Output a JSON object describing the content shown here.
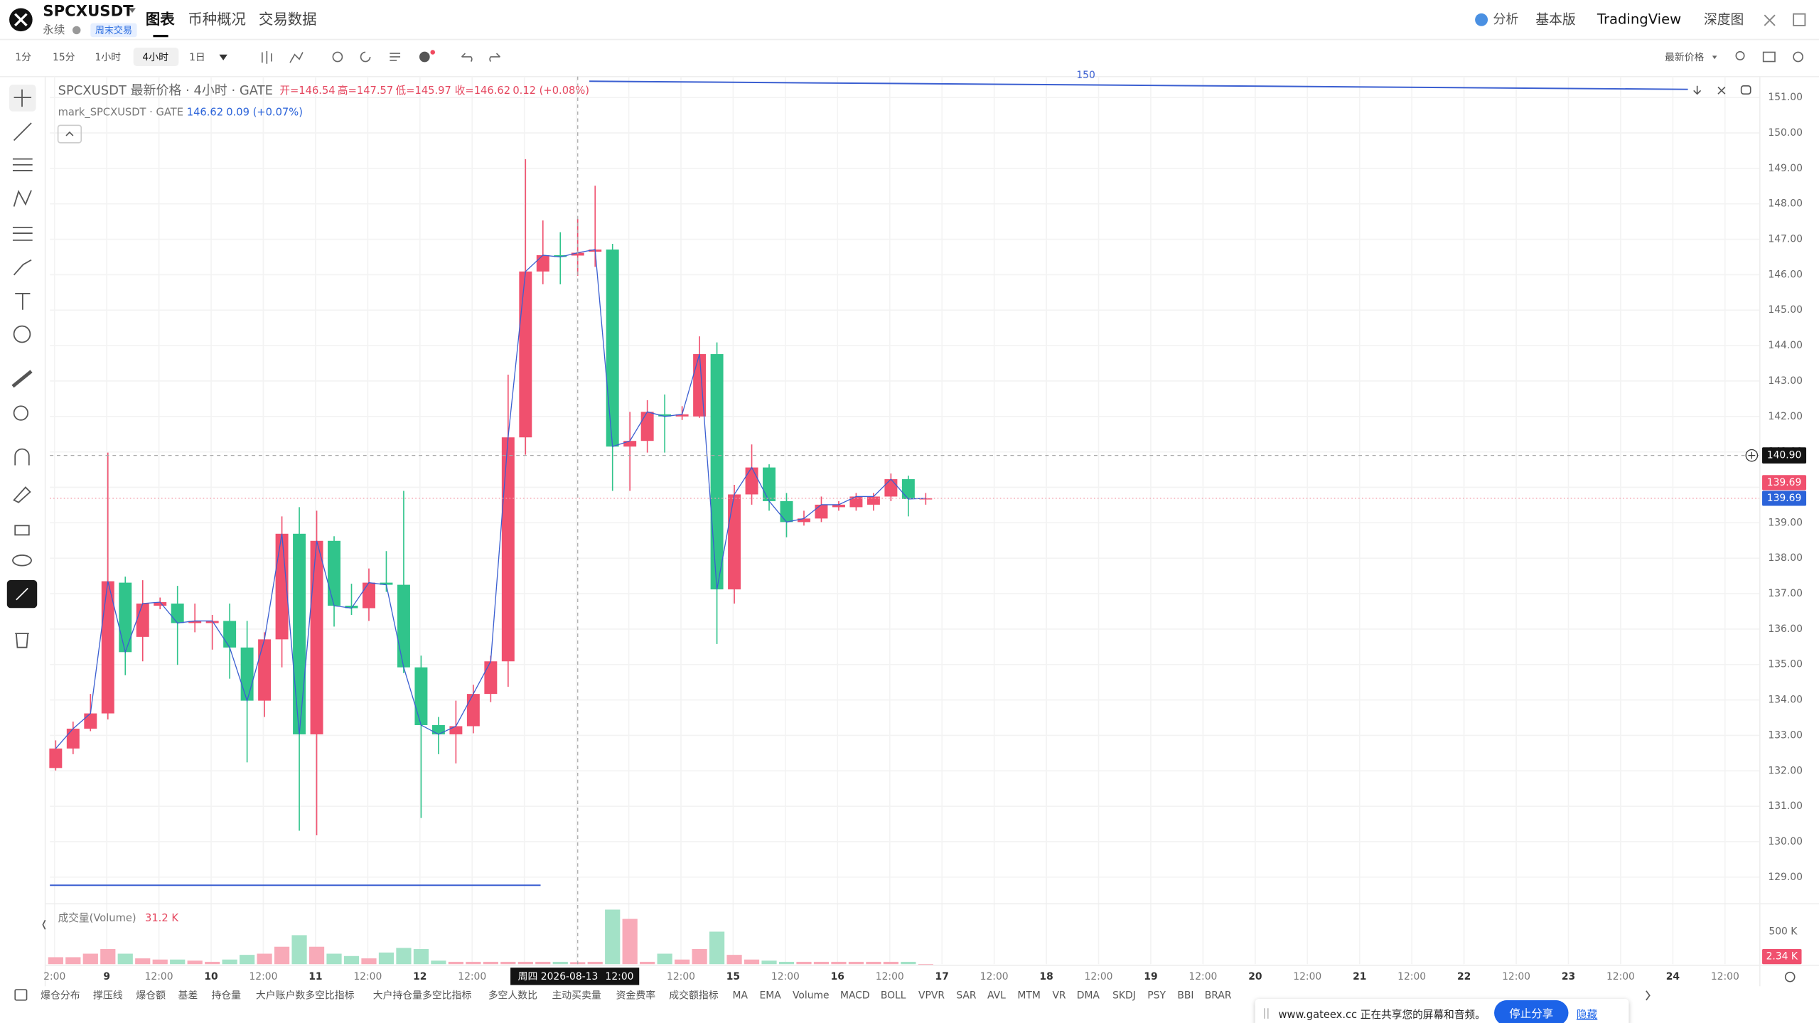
{
  "header": {
    "symbol": "SPCXUSDT",
    "contract": "永续",
    "badge": "周末交易",
    "tabs": [
      "图表",
      "币种概况",
      "交易数据"
    ],
    "links": [
      "分析",
      "基本版",
      "TradingView",
      "深度图"
    ]
  },
  "toolbar": {
    "intervals": [
      "1分",
      "15分",
      "1小时",
      "4小时",
      "1日"
    ],
    "price_source": "最新价格"
  },
  "chart_data": {
    "type": "candlestick",
    "legend": {
      "title": "SPCXUSDT 最新价格 · 4小时 · GATE",
      "items": [
        "开=146.54",
        "高=147.57",
        "低=145.97",
        "收=146.62"
      ],
      "change": "0.12 (+0.08%)",
      "mark_title": "mark_SPCXUSDT · GATE",
      "mark_close": "146.62",
      "mark_change": "0.09 (+0.07%)"
    },
    "drawing_label": "150",
    "colors": {
      "up": "#f0506e",
      "down": "#30c48b",
      "mark_line": "#3b5fd1",
      "up_volume": "#f8aab8",
      "down_volume": "#a3e2c7"
    },
    "open": [
      132.08,
      132.63,
      133.19,
      133.62,
      137.31,
      135.78,
      136.66,
      136.72,
      136.17,
      136.17,
      136.23,
      135.48,
      133.98,
      135.71,
      138.69,
      133.03,
      138.49,
      136.66,
      136.59,
      137.31,
      137.25,
      134.92,
      133.29,
      133.03,
      133.26,
      134.17,
      135.09,
      141.41,
      146.09,
      146.55,
      146.54,
      146.65,
      146.71,
      141.15,
      141.31,
      142.06,
      142.0,
      142.0,
      143.76,
      137.12,
      139.8,
      140.56,
      139.61,
      139.02,
      139.12,
      139.44,
      139.44,
      139.51,
      139.74,
      140.23,
      139.67
    ],
    "high": [
      132.86,
      133.39,
      134.17,
      140.98,
      137.48,
      137.38,
      136.89,
      137.22,
      136.72,
      136.4,
      136.72,
      136.23,
      135.91,
      139.18,
      139.44,
      139.34,
      138.62,
      137.28,
      137.71,
      138.2,
      139.9,
      135.25,
      133.52,
      133.98,
      134.43,
      135.25,
      143.18,
      149.26,
      147.53,
      147.2,
      147.57,
      148.51,
      146.87,
      142.13,
      142.46,
      142.62,
      142.29,
      144.26,
      144.09,
      140.07,
      141.21,
      140.65,
      139.84,
      139.34,
      139.74,
      139.61,
      139.84,
      139.84,
      140.39,
      140.33,
      139.84
    ],
    "low": [
      132.01,
      132.47,
      133.12,
      133.45,
      134.7,
      135.09,
      136.56,
      134.99,
      135.91,
      135.42,
      134.6,
      132.24,
      133.52,
      134.92,
      130.31,
      130.18,
      136.07,
      136.4,
      136.23,
      137.05,
      134.76,
      130.67,
      132.47,
      132.21,
      133.06,
      133.94,
      134.37,
      140.92,
      145.73,
      145.73,
      145.97,
      146.22,
      139.9,
      139.9,
      140.98,
      140.98,
      141.9,
      141.96,
      135.58,
      136.72,
      139.51,
      139.34,
      138.59,
      138.92,
      139.02,
      139.34,
      139.34,
      139.34,
      139.61,
      139.18,
      139.51
    ],
    "close": [
      132.63,
      133.19,
      133.62,
      137.35,
      135.35,
      136.72,
      136.76,
      136.17,
      136.23,
      136.23,
      135.48,
      133.98,
      135.71,
      138.69,
      133.03,
      138.49,
      136.66,
      136.59,
      137.31,
      137.25,
      134.92,
      133.29,
      133.03,
      133.26,
      134.17,
      135.09,
      141.41,
      146.09,
      146.55,
      146.5,
      146.62,
      146.71,
      141.15,
      141.31,
      142.13,
      142.0,
      142.06,
      143.76,
      137.12,
      139.8,
      140.56,
      139.61,
      139.02,
      139.12,
      139.51,
      139.51,
      139.74,
      139.74,
      140.23,
      139.67,
      139.69
    ],
    "ylim": [
      128.28,
      151.59
    ],
    "yticks": [
      {
        "value": 129,
        "label": "129.00"
      },
      {
        "value": 130,
        "label": "130.00"
      },
      {
        "value": 131,
        "label": "131.00"
      },
      {
        "value": 132,
        "label": "132.00"
      },
      {
        "value": 133,
        "label": "133.00"
      },
      {
        "value": 134,
        "label": "134.00"
      },
      {
        "value": 135,
        "label": "135.00"
      },
      {
        "value": 136,
        "label": "136.00"
      },
      {
        "value": 137,
        "label": "137.00"
      },
      {
        "value": 138,
        "label": "138.00"
      },
      {
        "value": 139,
        "label": "139.00"
      },
      {
        "value": 140,
        "label": "140.00"
      },
      {
        "value": 141,
        "label": "141.00"
      },
      {
        "value": 142,
        "label": "142.00"
      },
      {
        "value": 143,
        "label": "143.00"
      },
      {
        "value": 144,
        "label": "144.00"
      },
      {
        "value": 145,
        "label": "145.00"
      },
      {
        "value": 146,
        "label": "146.00"
      },
      {
        "value": 147,
        "label": "147.00"
      },
      {
        "value": 148,
        "label": "148.00"
      },
      {
        "value": 149,
        "label": "149.00"
      },
      {
        "value": 150,
        "label": "150.00"
      },
      {
        "value": 151,
        "label": "151.00"
      }
    ],
    "grid": true,
    "x_labels": [
      "2:00",
      "9",
      "12:00",
      "10",
      "12:00",
      "11",
      "12:00",
      "12",
      "12:00",
      null,
      null,
      null,
      "12:00",
      "15",
      "12:00",
      "16",
      "12:00",
      "17",
      "12:00",
      "18",
      "12:00",
      "19",
      "12:00",
      "20",
      "12:00",
      "21",
      "12:00",
      "22",
      "12:00",
      "23",
      "12:00",
      "24",
      "12:00"
    ],
    "crosshair": {
      "price": {
        "value": 140.9,
        "label": "140.90"
      },
      "date": "周四 2026-08-13",
      "time": "12:00"
    },
    "last_price": {
      "value": 139.69,
      "label": "139.69"
    },
    "mark_price": {
      "value": 139.69,
      "label": "139.69"
    },
    "volume": {
      "name": "成交量(Volume)",
      "values": [
        107,
        107,
        161,
        232,
        161,
        89,
        71,
        71,
        54,
        36,
        71,
        143,
        161,
        268,
        446,
        268,
        161,
        125,
        89,
        179,
        250,
        232,
        54,
        36,
        36,
        36,
        36,
        36,
        36,
        36,
        31.2,
        36,
        839,
        696,
        36,
        161,
        71,
        232,
        500,
        143,
        71,
        54,
        36,
        36,
        36,
        36,
        36,
        36,
        36,
        36,
        2.34
      ],
      "value_labels": [
        null,
        null,
        null,
        null,
        null,
        null,
        null,
        null,
        null,
        null,
        null,
        null,
        null,
        null,
        null,
        null,
        null,
        null,
        null,
        null,
        null,
        null,
        null,
        null,
        null,
        null,
        null,
        null,
        null,
        null,
        "31.2 K",
        null,
        null,
        null,
        null,
        null,
        null,
        null,
        null,
        null,
        null,
        null,
        null,
        null,
        null,
        null,
        null,
        null,
        null,
        null,
        "2.34 K"
      ],
      "ylim": [
        0,
        910
      ],
      "yticks": [
        {
          "value": 500,
          "label": "500 K"
        }
      ]
    }
  },
  "indicators": [
    "爆仓分布",
    "撑压线",
    "爆仓额",
    "基差",
    "持仓量",
    "大户账户数多空比指标",
    "大户持仓量多空比指标",
    "多空人数比",
    "主动买卖量",
    "资金费率",
    "成交额指标",
    "MA",
    "EMA",
    "Volume",
    "MACD",
    "BOLL",
    "VPVR",
    "SAR",
    "AVL",
    "MTM",
    "VR",
    "DMA",
    "SKDJ",
    "PSY",
    "BBI",
    "BRAR"
  ],
  "share_banner": {
    "message": "www.gateex.cc 正在共享您的屏幕和音频。",
    "stop": "停止分享",
    "hide": "隐藏"
  }
}
